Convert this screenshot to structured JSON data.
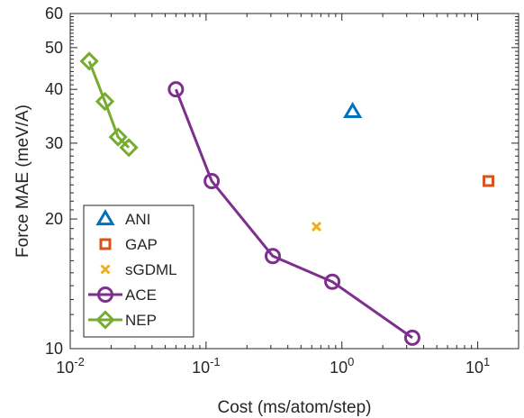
{
  "chart_data": {
    "type": "scatter",
    "xlabel": "Cost (ms/atom/step)",
    "ylabel": "Force MAE (meV/A)",
    "xscale": "log",
    "yscale": "log",
    "xlim": [
      0.01,
      20
    ],
    "ylim": [
      10,
      60
    ],
    "grid": false,
    "legend_position": "lower-left",
    "x_ticks": [
      {
        "value": 0.01,
        "base": "10",
        "exp": "-2"
      },
      {
        "value": 0.1,
        "base": "10",
        "exp": "-1"
      },
      {
        "value": 1,
        "base": "10",
        "exp": "0"
      },
      {
        "value": 10,
        "base": "10",
        "exp": "1"
      }
    ],
    "y_ticks": [
      {
        "value": 10,
        "label": "10"
      },
      {
        "value": 20,
        "label": "20"
      },
      {
        "value": 30,
        "label": "30"
      },
      {
        "value": 40,
        "label": "40"
      },
      {
        "value": 50,
        "label": "50"
      },
      {
        "value": 60,
        "label": "60"
      }
    ],
    "series": [
      {
        "name": "ANI",
        "marker": "triangle",
        "color": "#0072BD",
        "line": false,
        "points": [
          {
            "x": 1.2,
            "y": 35.5
          }
        ]
      },
      {
        "name": "GAP",
        "marker": "square",
        "color": "#D95319",
        "line": false,
        "points": [
          {
            "x": 12,
            "y": 24.5
          }
        ]
      },
      {
        "name": "sGDML",
        "marker": "x",
        "color": "#EDB120",
        "line": false,
        "points": [
          {
            "x": 0.65,
            "y": 19.2
          }
        ]
      },
      {
        "name": "ACE",
        "marker": "circle",
        "color": "#7E2F8E",
        "line": true,
        "points": [
          {
            "x": 0.06,
            "y": 40
          },
          {
            "x": 0.11,
            "y": 24.5
          },
          {
            "x": 0.31,
            "y": 16.4
          },
          {
            "x": 0.85,
            "y": 14.3
          },
          {
            "x": 3.3,
            "y": 10.6
          }
        ]
      },
      {
        "name": "NEP",
        "marker": "diamond",
        "color": "#77AC30",
        "line": true,
        "points": [
          {
            "x": 0.0138,
            "y": 46.5
          },
          {
            "x": 0.018,
            "y": 37.5
          },
          {
            "x": 0.0225,
            "y": 31
          },
          {
            "x": 0.027,
            "y": 29.3
          }
        ]
      }
    ]
  }
}
